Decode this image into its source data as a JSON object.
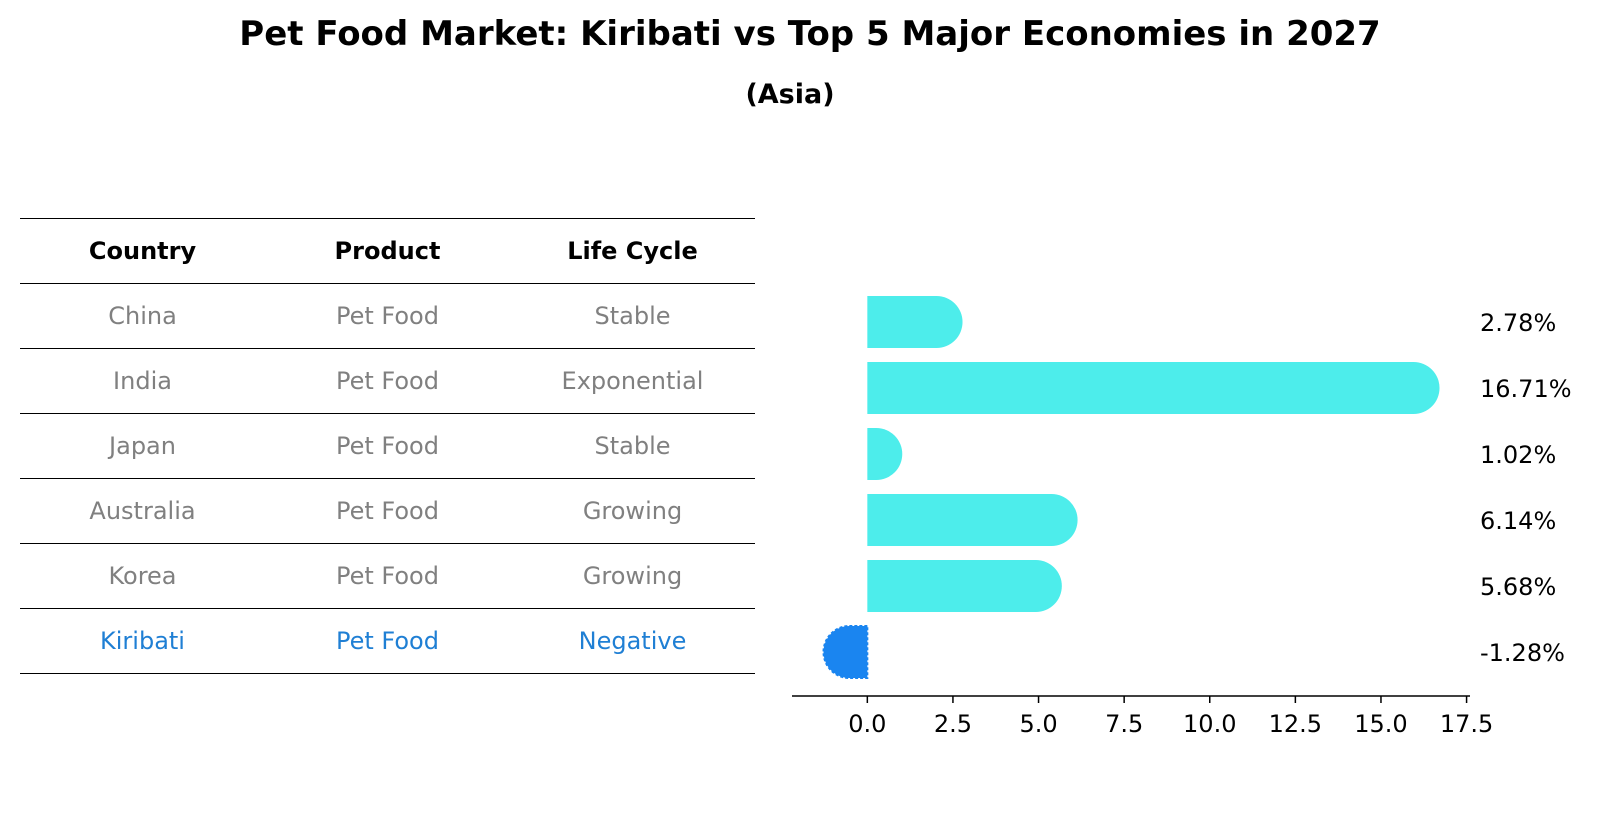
{
  "title": "Pet Food Market: Kiribati vs Top 5 Major Economies in 2027",
  "subtitle": "(Asia)",
  "table": {
    "headers": [
      "Country",
      "Product",
      "Life Cycle"
    ],
    "rows": [
      {
        "country": "China",
        "product": "Pet Food",
        "life_cycle": "Stable"
      },
      {
        "country": "India",
        "product": "Pet Food",
        "life_cycle": "Exponential"
      },
      {
        "country": "Japan",
        "product": "Pet Food",
        "life_cycle": "Stable"
      },
      {
        "country": "Australia",
        "product": "Pet Food",
        "life_cycle": "Growing"
      },
      {
        "country": "Korea",
        "product": "Pet Food",
        "life_cycle": "Growing"
      },
      {
        "country": "Kiribati",
        "product": "Pet Food",
        "life_cycle": "Negative"
      }
    ]
  },
  "colors": {
    "bar": "#4DEDEB",
    "highlight_bar": "#1A85F0",
    "highlight_text": "#1F7FD4",
    "row_text": "#808080"
  },
  "chart_data": {
    "type": "bar",
    "orientation": "horizontal",
    "categories": [
      "China",
      "India",
      "Japan",
      "Australia",
      "Korea",
      "Kiribati"
    ],
    "values": [
      2.78,
      16.71,
      1.02,
      6.14,
      5.68,
      -1.28
    ],
    "value_labels": [
      "2.78%",
      "16.71%",
      "1.02%",
      "6.14%",
      "5.68%",
      "-1.28%"
    ],
    "highlight_category": "Kiribati",
    "xlim": [
      -2.2,
      17.6
    ],
    "xticks": [
      0,
      2.5,
      5,
      7.5,
      10,
      12.5,
      15,
      17.5
    ],
    "xtick_labels": [
      "0.0",
      "2.5",
      "5.0",
      "7.5",
      "10.0",
      "12.5",
      "15.0",
      "17.5"
    ],
    "title": "",
    "xlabel": "",
    "ylabel": ""
  }
}
